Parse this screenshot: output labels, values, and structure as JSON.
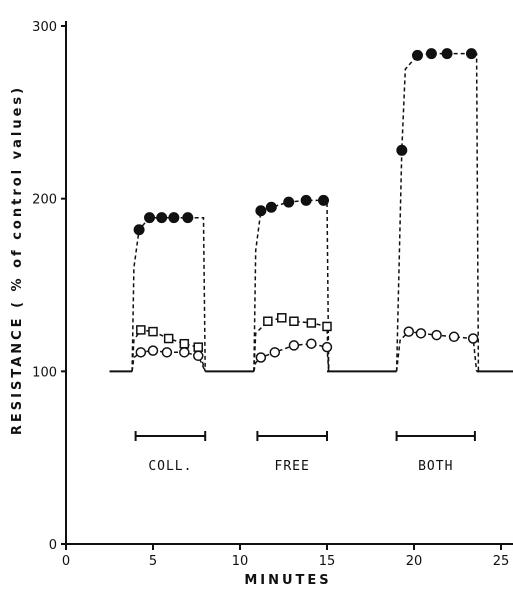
{
  "chart_data": {
    "type": "line",
    "title": "",
    "xlabel": "MINUTES",
    "ylabel": "RESISTANCE  ( % of control values)",
    "xlim": [
      0,
      27
    ],
    "ylim": [
      0,
      300
    ],
    "xticks": [
      0,
      5,
      10,
      15,
      20,
      25
    ],
    "yticks": [
      0,
      100,
      200,
      300
    ],
    "xtick_labels": [
      "0",
      "5",
      "10",
      "15",
      "20",
      "25"
    ],
    "ytick_labels": [
      "0",
      "100",
      "200",
      "300"
    ],
    "grid": false,
    "legend": "none",
    "baseline": {
      "value": 100,
      "segments": [
        [
          2.5,
          3.8
        ],
        [
          8.0,
          10.8
        ],
        [
          15.0,
          19.0
        ],
        [
          23.6,
          26.0
        ]
      ]
    },
    "periods": [
      {
        "label": "COLL.",
        "start": 4.0,
        "end": 8.0
      },
      {
        "label": "FREE",
        "start": 11.0,
        "end": 15.0
      },
      {
        "label": "BOTH",
        "start": 19.0,
        "end": 23.5
      }
    ],
    "series": [
      {
        "marker": "filled-circle",
        "points": [
          [
            4.2,
            182
          ],
          [
            4.8,
            189
          ],
          [
            5.5,
            189
          ],
          [
            6.2,
            189
          ],
          [
            7.0,
            189
          ],
          [
            11.2,
            193
          ],
          [
            11.8,
            195
          ],
          [
            12.8,
            198
          ],
          [
            13.8,
            199
          ],
          [
            14.8,
            199
          ],
          [
            19.3,
            228
          ],
          [
            20.2,
            283
          ],
          [
            21.0,
            284
          ],
          [
            21.9,
            284
          ],
          [
            23.3,
            284
          ]
        ],
        "trace": [
          [
            [
              3.8,
              100
            ],
            [
              3.9,
              160
            ],
            [
              4.2,
              182
            ],
            [
              4.8,
              189
            ],
            [
              5.5,
              189
            ],
            [
              6.2,
              189
            ],
            [
              7.0,
              189
            ],
            [
              7.9,
              189
            ],
            [
              8.0,
              100
            ]
          ],
          [
            [
              10.8,
              100
            ],
            [
              10.9,
              170
            ],
            [
              11.2,
              193
            ],
            [
              11.8,
              195
            ],
            [
              12.8,
              198
            ],
            [
              13.8,
              199
            ],
            [
              14.8,
              199
            ],
            [
              15.0,
              199
            ],
            [
              15.1,
              100
            ]
          ],
          [
            [
              19.0,
              100
            ],
            [
              19.3,
              228
            ],
            [
              19.5,
              275
            ],
            [
              20.2,
              283
            ],
            [
              21.0,
              284
            ],
            [
              21.9,
              284
            ],
            [
              23.3,
              284
            ],
            [
              23.6,
              284
            ],
            [
              23.7,
              100
            ]
          ]
        ]
      },
      {
        "marker": "open-square",
        "points": [
          [
            4.3,
            124
          ],
          [
            5.0,
            123
          ],
          [
            5.9,
            119
          ],
          [
            6.8,
            116
          ],
          [
            7.6,
            114
          ],
          [
            11.6,
            129
          ],
          [
            12.4,
            131
          ],
          [
            13.1,
            129
          ],
          [
            14.1,
            128
          ],
          [
            15.0,
            126
          ]
        ],
        "trace": [
          [
            [
              3.8,
              100
            ],
            [
              3.9,
              118
            ],
            [
              4.3,
              124
            ],
            [
              5.0,
              123
            ],
            [
              5.9,
              119
            ],
            [
              6.8,
              116
            ],
            [
              7.6,
              114
            ],
            [
              8.0,
              100
            ]
          ],
          [
            [
              10.8,
              100
            ],
            [
              10.9,
              122
            ],
            [
              11.6,
              129
            ],
            [
              12.4,
              131
            ],
            [
              13.1,
              129
            ],
            [
              14.1,
              128
            ],
            [
              15.0,
              126
            ],
            [
              15.1,
              100
            ]
          ]
        ]
      },
      {
        "marker": "open-circle",
        "points": [
          [
            4.3,
            111
          ],
          [
            5.0,
            112
          ],
          [
            5.8,
            111
          ],
          [
            6.8,
            111
          ],
          [
            7.6,
            109
          ],
          [
            11.2,
            108
          ],
          [
            12.0,
            111
          ],
          [
            13.1,
            115
          ],
          [
            14.1,
            116
          ],
          [
            15.0,
            114
          ],
          [
            19.7,
            123
          ],
          [
            20.4,
            122
          ],
          [
            21.3,
            121
          ],
          [
            22.3,
            120
          ],
          [
            23.4,
            119
          ]
        ],
        "trace": [
          [
            [
              3.8,
              100
            ],
            [
              3.9,
              108
            ],
            [
              4.3,
              111
            ],
            [
              5.0,
              112
            ],
            [
              5.8,
              111
            ],
            [
              6.8,
              111
            ],
            [
              7.6,
              109
            ],
            [
              8.0,
              100
            ]
          ],
          [
            [
              10.8,
              100
            ],
            [
              10.9,
              105
            ],
            [
              11.2,
              108
            ],
            [
              12.0,
              111
            ],
            [
              13.1,
              115
            ],
            [
              14.1,
              116
            ],
            [
              15.0,
              114
            ],
            [
              15.1,
              100
            ]
          ],
          [
            [
              19.0,
              100
            ],
            [
              19.2,
              118
            ],
            [
              19.7,
              123
            ],
            [
              20.4,
              122
            ],
            [
              21.3,
              121
            ],
            [
              22.3,
              120
            ],
            [
              23.4,
              119
            ],
            [
              23.6,
              100
            ]
          ]
        ]
      }
    ]
  }
}
